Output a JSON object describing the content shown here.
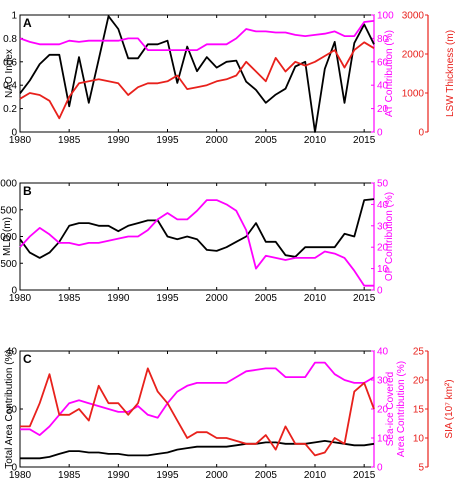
{
  "colors": {
    "black": "#000000",
    "magenta": "#ff00ff",
    "red": "#e8211c"
  },
  "chart_data": [
    {
      "type": "line",
      "panel_label": "A",
      "x_ticks": [
        "1980",
        "1985",
        "1990",
        "1995",
        "2000",
        "2005",
        "2010",
        "2015"
      ],
      "xlim": [
        1980,
        2016
      ],
      "axes": {
        "left": {
          "label": "NAO Index",
          "lim": [
            0,
            1
          ],
          "ticks": [
            "0",
            "0.2",
            "0.4",
            "0.6",
            "0.8",
            "1"
          ],
          "tick_values": [
            0,
            0.2,
            0.4,
            0.6,
            0.8,
            1
          ],
          "color": "#000000"
        },
        "right1": {
          "label": "AT Contribution (%)",
          "lim": [
            0,
            100
          ],
          "ticks": [
            "0",
            "20",
            "40",
            "60",
            "80",
            "100"
          ],
          "tick_values": [
            0,
            20,
            40,
            60,
            80,
            100
          ],
          "color": "#ff00ff"
        },
        "right2": {
          "label": "LSW Thickness (m)",
          "lim": [
            0,
            3000
          ],
          "ticks": [
            "0",
            "1000",
            "2000",
            "3000"
          ],
          "tick_values": [
            0,
            1000,
            2000,
            3000
          ],
          "color": "#e8211c"
        }
      },
      "series": [
        {
          "axis": "left",
          "color": "#000000",
          "x": [
            1980,
            1981,
            1982,
            1983,
            1984,
            1985,
            1986,
            1987,
            1988,
            1989,
            1990,
            1991,
            1992,
            1993,
            1994,
            1995,
            1996,
            1997,
            1998,
            1999,
            2000,
            2001,
            2002,
            2003,
            2004,
            2005,
            2006,
            2007,
            2008,
            2009,
            2010,
            2011,
            2012,
            2013,
            2014,
            2015,
            2016
          ],
          "y": [
            0.33,
            0.44,
            0.58,
            0.66,
            0.66,
            0.22,
            0.64,
            0.25,
            0.62,
            0.99,
            0.88,
            0.63,
            0.63,
            0.75,
            0.75,
            0.78,
            0.42,
            0.73,
            0.52,
            0.64,
            0.55,
            0.6,
            0.61,
            0.43,
            0.36,
            0.25,
            0.32,
            0.37,
            0.56,
            0.6,
            0.0,
            0.54,
            0.77,
            0.25,
            0.76,
            0.92,
            0.75
          ]
        },
        {
          "axis": "right1",
          "color": "#ff00ff",
          "x": [
            1980,
            1981,
            1982,
            1983,
            1984,
            1985,
            1986,
            1987,
            1988,
            1989,
            1990,
            1991,
            1992,
            1993,
            1994,
            1995,
            1996,
            1997,
            1998,
            1999,
            2000,
            2001,
            2002,
            2003,
            2004,
            2005,
            2006,
            2007,
            2008,
            2009,
            2010,
            2011,
            2012,
            2013,
            2014,
            2015,
            2016
          ],
          "y": [
            80,
            77,
            75,
            75,
            75,
            78,
            77,
            78,
            78,
            78,
            78,
            80,
            80,
            70,
            70,
            70,
            70,
            70,
            70,
            75,
            75,
            75,
            80,
            88,
            86,
            86,
            85,
            85,
            83,
            82,
            83,
            84,
            86,
            82,
            82,
            94,
            95
          ]
        },
        {
          "axis": "right2",
          "color": "#e8211c",
          "x": [
            1980,
            1981,
            1982,
            1983,
            1984,
            1985,
            1986,
            1987,
            1988,
            1989,
            1990,
            1991,
            1992,
            1993,
            1994,
            1995,
            1996,
            1997,
            1998,
            1999,
            2000,
            2001,
            2002,
            2003,
            2004,
            2005,
            2006,
            2007,
            2008,
            2009,
            2010,
            2011,
            2012,
            2013,
            2014,
            2015,
            2016
          ],
          "y": [
            850,
            1000,
            950,
            800,
            350,
            900,
            1250,
            1300,
            1350,
            1300,
            1250,
            950,
            1150,
            1250,
            1250,
            1300,
            1450,
            1100,
            1150,
            1200,
            1300,
            1350,
            1450,
            1800,
            1550,
            1300,
            1900,
            1550,
            1800,
            1700,
            1800,
            1950,
            2100,
            1650,
            2100,
            2300,
            2150
          ]
        }
      ]
    },
    {
      "type": "line",
      "panel_label": "B",
      "x_ticks": [
        "1980",
        "1985",
        "1990",
        "1995",
        "2000",
        "2005",
        "2010",
        "2015"
      ],
      "xlim": [
        1980,
        2016
      ],
      "axes": {
        "left": {
          "label": "MLD (m)",
          "lim": [
            0,
            2000
          ],
          "ticks": [
            "0",
            "500",
            "1000",
            "1500",
            "2000"
          ],
          "tick_values": [
            0,
            500,
            1000,
            1500,
            2000
          ],
          "color": "#000000"
        },
        "right1": {
          "label": "OP Contribution (%)",
          "lim": [
            0,
            50
          ],
          "ticks": [
            "0",
            "10",
            "20",
            "30",
            "40",
            "50"
          ],
          "tick_values": [
            0,
            10,
            20,
            30,
            40,
            50
          ],
          "color": "#ff00ff"
        }
      },
      "series": [
        {
          "axis": "left",
          "color": "#000000",
          "x": [
            1980,
            1981,
            1982,
            1983,
            1984,
            1985,
            1986,
            1987,
            1988,
            1989,
            1990,
            1991,
            1992,
            1993,
            1994,
            1995,
            1996,
            1997,
            1998,
            1999,
            2000,
            2001,
            2002,
            2003,
            2004,
            2005,
            2006,
            2007,
            2008,
            2009,
            2010,
            2011,
            2012,
            2013,
            2014,
            2015,
            2016
          ],
          "y": [
            950,
            700,
            600,
            700,
            900,
            1200,
            1250,
            1250,
            1200,
            1200,
            1100,
            1200,
            1250,
            1300,
            1300,
            1000,
            950,
            1000,
            950,
            750,
            730,
            800,
            900,
            1000,
            1250,
            900,
            900,
            650,
            620,
            800,
            800,
            800,
            800,
            1050,
            1000,
            1680,
            1700
          ]
        },
        {
          "axis": "right1",
          "color": "#ff00ff",
          "x": [
            1980,
            1981,
            1982,
            1983,
            1984,
            1985,
            1986,
            1987,
            1988,
            1989,
            1990,
            1991,
            1992,
            1993,
            1994,
            1995,
            1996,
            1997,
            1998,
            1999,
            2000,
            2001,
            2002,
            2003,
            2004,
            2005,
            2006,
            2007,
            2008,
            2009,
            2010,
            2011,
            2012,
            2013,
            2014,
            2015,
            2016
          ],
          "y": [
            20,
            25,
            29,
            26,
            22,
            22,
            21,
            22,
            22,
            23,
            24,
            25,
            25,
            28,
            33,
            36,
            33,
            33,
            37,
            42,
            42,
            40,
            37,
            28,
            10,
            16,
            15,
            14,
            15,
            15,
            15,
            18,
            17,
            15,
            9,
            2,
            2
          ]
        }
      ]
    },
    {
      "type": "line",
      "panel_label": "C",
      "x_ticks": [
        "1980",
        "1985",
        "1990",
        "1995",
        "2000",
        "2005",
        "2010",
        "2015"
      ],
      "xlim": [
        1980,
        2016
      ],
      "axes": {
        "left": {
          "label": "Total Area Contribution (%)",
          "lim": [
            0,
            40
          ],
          "ticks": [
            "0",
            "20",
            "40"
          ],
          "tick_values": [
            0,
            20,
            40
          ],
          "color": "#000000"
        },
        "right1": {
          "label": "Sea-ice Covered Area Contribution (%)",
          "lim": [
            0,
            40
          ],
          "ticks": [
            "0",
            "10",
            "20",
            "30",
            "40"
          ],
          "tick_values": [
            0,
            10,
            20,
            30,
            40
          ],
          "color": "#ff00ff"
        },
        "right2": {
          "label": "SIA (10⁷ km²)",
          "lim": [
            5,
            25
          ],
          "ticks": [
            "5",
            "10",
            "15",
            "20",
            "25"
          ],
          "tick_values": [
            5,
            10,
            15,
            20,
            25
          ],
          "color": "#e8211c"
        }
      },
      "series": [
        {
          "axis": "left",
          "color": "#000000",
          "x": [
            1980,
            1981,
            1982,
            1983,
            1984,
            1985,
            1986,
            1987,
            1988,
            1989,
            1990,
            1991,
            1992,
            1993,
            1994,
            1995,
            1996,
            1997,
            1998,
            1999,
            2000,
            2001,
            2002,
            2003,
            2004,
            2005,
            2006,
            2007,
            2008,
            2009,
            2010,
            2011,
            2012,
            2013,
            2014,
            2015,
            2016
          ],
          "y": [
            3,
            3,
            3,
            3.5,
            4.5,
            5.5,
            5.5,
            5,
            5,
            4.5,
            4.5,
            4,
            4,
            4,
            4.5,
            5,
            6,
            6.5,
            7,
            7,
            7,
            7,
            7.5,
            8,
            8,
            8.5,
            8.5,
            8,
            8,
            8,
            8.5,
            9,
            8.5,
            8,
            7.5,
            7.5,
            8
          ]
        },
        {
          "axis": "right1",
          "color": "#ff00ff",
          "x": [
            1980,
            1981,
            1982,
            1983,
            1984,
            1985,
            1986,
            1987,
            1988,
            1989,
            1990,
            1991,
            1992,
            1993,
            1994,
            1995,
            1996,
            1997,
            1998,
            1999,
            2000,
            2001,
            2002,
            2003,
            2004,
            2005,
            2006,
            2007,
            2008,
            2009,
            2010,
            2011,
            2012,
            2013,
            2014,
            2015,
            2016
          ],
          "y": [
            13,
            13,
            11,
            14,
            18,
            22,
            23,
            22,
            21,
            20,
            19,
            19,
            21,
            18,
            17,
            22,
            26,
            28,
            29,
            29,
            29,
            29,
            31,
            33,
            33.5,
            34,
            34,
            31,
            31,
            31,
            36,
            36,
            32,
            30,
            29,
            29,
            31
          ]
        },
        {
          "axis": "right2",
          "color": "#e8211c",
          "x": [
            1980,
            1981,
            1982,
            1983,
            1984,
            1985,
            1986,
            1987,
            1988,
            1989,
            1990,
            1991,
            1992,
            1993,
            1994,
            1995,
            1996,
            1997,
            1998,
            1999,
            2000,
            2001,
            2002,
            2003,
            2004,
            2005,
            2006,
            2007,
            2008,
            2009,
            2010,
            2011,
            2012,
            2013,
            2014,
            2015,
            2016
          ],
          "y": [
            12,
            12,
            16,
            21,
            14,
            14,
            15,
            13,
            19,
            16,
            16,
            14,
            16,
            22,
            18,
            16,
            13,
            10,
            11,
            11,
            10,
            10,
            9.5,
            9,
            9,
            10.5,
            8,
            12,
            9,
            9,
            7,
            7.5,
            10,
            9,
            18,
            19.5,
            15
          ]
        }
      ]
    }
  ]
}
